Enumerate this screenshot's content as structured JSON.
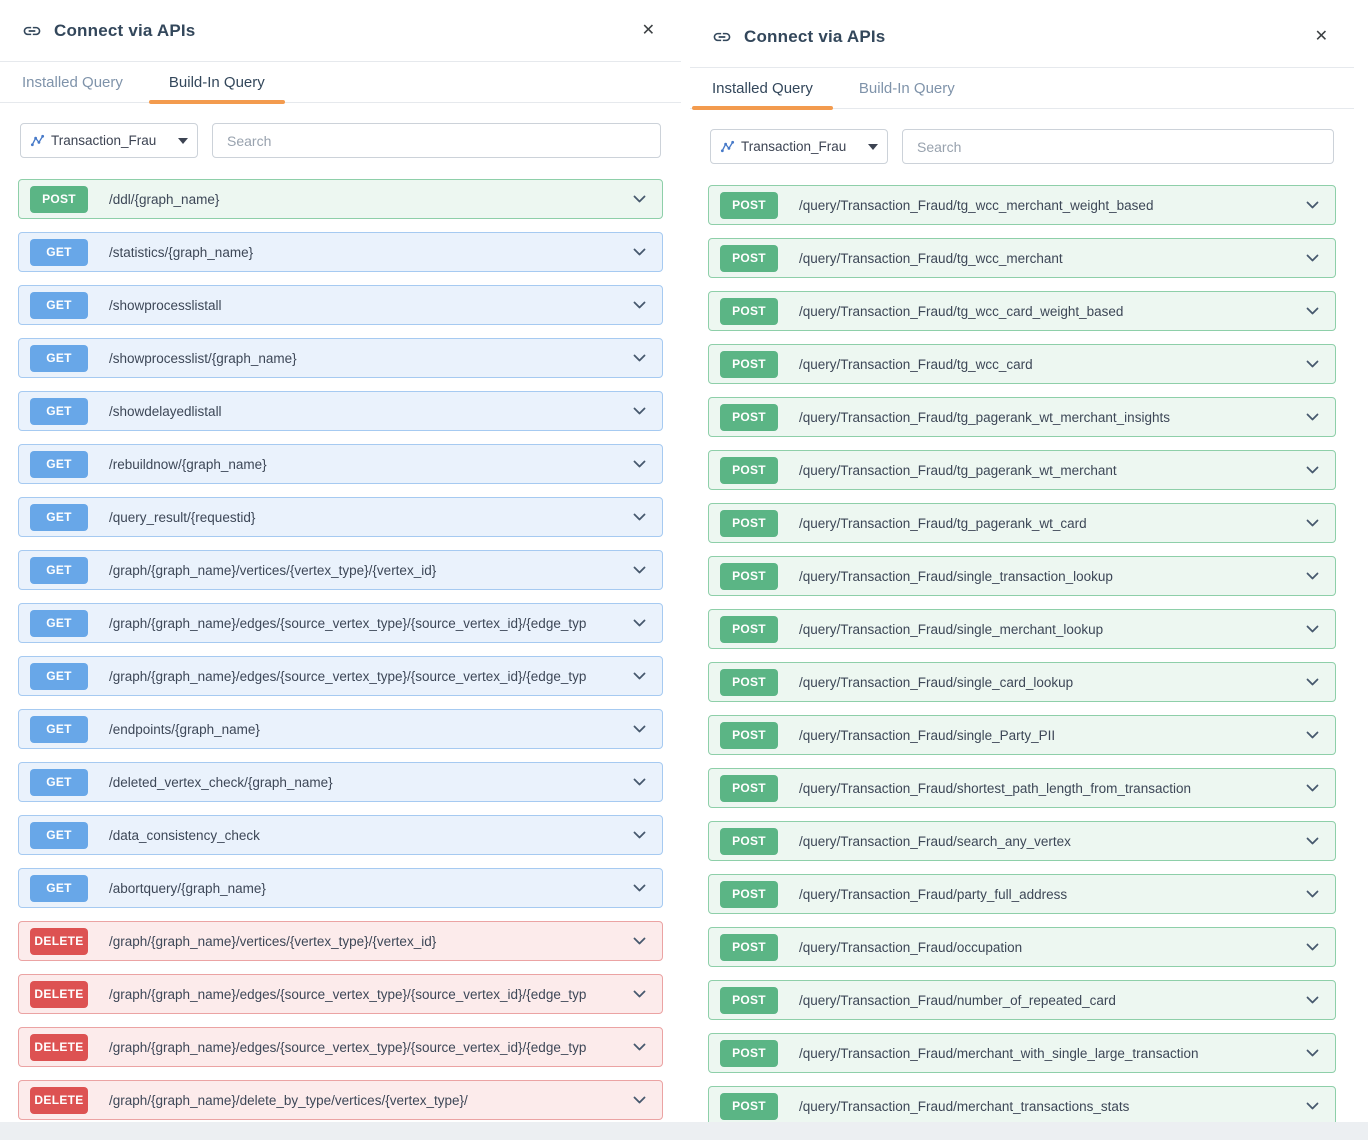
{
  "colors": {
    "accent_orange": "#f39b4e",
    "title_navy": "#33475b",
    "post_badge": "#5bb585",
    "get_badge": "#68a7e8",
    "delete_badge": "#dd5252",
    "post_row_bg": "#edf7f1",
    "get_row_bg": "#eaf2fc",
    "delete_row_bg": "#fcebeb"
  },
  "icons": {
    "header": "link-icon",
    "close": "close-icon",
    "graph_selector": "graph-icon",
    "row_expand": "chevron-down-icon"
  },
  "panels": [
    {
      "title": "Connect via APIs",
      "close_label": "✕",
      "tabs": [
        {
          "label": "Installed Query",
          "active": false
        },
        {
          "label": "Build-In Query",
          "active": true
        }
      ],
      "graph_selector": {
        "value": "Transaction_Frau"
      },
      "search": {
        "placeholder": "Search"
      },
      "endpoints": [
        {
          "method": "POST",
          "path": "/ddl/{graph_name}"
        },
        {
          "method": "GET",
          "path": "/statistics/{graph_name}"
        },
        {
          "method": "GET",
          "path": "/showprocesslistall"
        },
        {
          "method": "GET",
          "path": "/showprocesslist/{graph_name}"
        },
        {
          "method": "GET",
          "path": "/showdelayedlistall"
        },
        {
          "method": "GET",
          "path": "/rebuildnow/{graph_name}"
        },
        {
          "method": "GET",
          "path": "/query_result/{requestid}"
        },
        {
          "method": "GET",
          "path": "/graph/{graph_name}/vertices/{vertex_type}/{vertex_id}"
        },
        {
          "method": "GET",
          "path": "/graph/{graph_name}/edges/{source_vertex_type}/{source_vertex_id}/{edge_typ"
        },
        {
          "method": "GET",
          "path": "/graph/{graph_name}/edges/{source_vertex_type}/{source_vertex_id}/{edge_typ"
        },
        {
          "method": "GET",
          "path": "/endpoints/{graph_name}"
        },
        {
          "method": "GET",
          "path": "/deleted_vertex_check/{graph_name}"
        },
        {
          "method": "GET",
          "path": "/data_consistency_check"
        },
        {
          "method": "GET",
          "path": "/abortquery/{graph_name}"
        },
        {
          "method": "DELETE",
          "path": "/graph/{graph_name}/vertices/{vertex_type}/{vertex_id}"
        },
        {
          "method": "DELETE",
          "path": "/graph/{graph_name}/edges/{source_vertex_type}/{source_vertex_id}/{edge_typ"
        },
        {
          "method": "DELETE",
          "path": "/graph/{graph_name}/edges/{source_vertex_type}/{source_vertex_id}/{edge_typ"
        },
        {
          "method": "DELETE",
          "path": "/graph/{graph_name}/delete_by_type/vertices/{vertex_type}/"
        }
      ]
    },
    {
      "title": "Connect via APIs",
      "close_label": "✕",
      "tabs": [
        {
          "label": "Installed Query",
          "active": true
        },
        {
          "label": "Build-In Query",
          "active": false
        }
      ],
      "graph_selector": {
        "value": "Transaction_Frau"
      },
      "search": {
        "placeholder": "Search"
      },
      "endpoints": [
        {
          "method": "POST",
          "path": "/query/Transaction_Fraud/tg_wcc_merchant_weight_based"
        },
        {
          "method": "POST",
          "path": "/query/Transaction_Fraud/tg_wcc_merchant"
        },
        {
          "method": "POST",
          "path": "/query/Transaction_Fraud/tg_wcc_card_weight_based"
        },
        {
          "method": "POST",
          "path": "/query/Transaction_Fraud/tg_wcc_card"
        },
        {
          "method": "POST",
          "path": "/query/Transaction_Fraud/tg_pagerank_wt_merchant_insights"
        },
        {
          "method": "POST",
          "path": "/query/Transaction_Fraud/tg_pagerank_wt_merchant"
        },
        {
          "method": "POST",
          "path": "/query/Transaction_Fraud/tg_pagerank_wt_card"
        },
        {
          "method": "POST",
          "path": "/query/Transaction_Fraud/single_transaction_lookup"
        },
        {
          "method": "POST",
          "path": "/query/Transaction_Fraud/single_merchant_lookup"
        },
        {
          "method": "POST",
          "path": "/query/Transaction_Fraud/single_card_lookup"
        },
        {
          "method": "POST",
          "path": "/query/Transaction_Fraud/single_Party_PII"
        },
        {
          "method": "POST",
          "path": "/query/Transaction_Fraud/shortest_path_length_from_transaction"
        },
        {
          "method": "POST",
          "path": "/query/Transaction_Fraud/search_any_vertex"
        },
        {
          "method": "POST",
          "path": "/query/Transaction_Fraud/party_full_address"
        },
        {
          "method": "POST",
          "path": "/query/Transaction_Fraud/occupation"
        },
        {
          "method": "POST",
          "path": "/query/Transaction_Fraud/number_of_repeated_card"
        },
        {
          "method": "POST",
          "path": "/query/Transaction_Fraud/merchant_with_single_large_transaction"
        },
        {
          "method": "POST",
          "path": "/query/Transaction_Fraud/merchant_transactions_stats"
        }
      ]
    }
  ]
}
